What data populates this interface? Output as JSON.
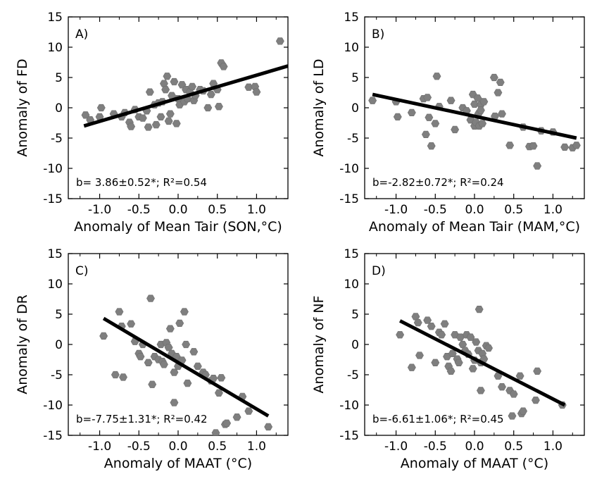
{
  "chart_data": [
    {
      "type": "scatter",
      "panel_label": "A)",
      "xlabel": "Anomaly of Mean Tair (SON,°C)",
      "ylabel": "Anomaly of FD",
      "xlim": [
        -1.4,
        1.4
      ],
      "ylim": [
        -15,
        15
      ],
      "xticks": [
        -1.0,
        -0.5,
        0.0,
        0.5,
        1.0
      ],
      "xtick_labels": [
        "-1.0",
        "-0.5",
        "0.0",
        "0.5",
        "1.0"
      ],
      "yticks": [
        -15,
        -10,
        -5,
        0,
        5,
        10,
        15
      ],
      "ytick_labels": [
        "-15",
        "-10",
        "-5",
        "0",
        "5",
        "10",
        "15"
      ],
      "annotation": "b= 3.86±0.52*; R²=0.54",
      "regression": {
        "x": [
          -1.2,
          1.4
        ],
        "y": [
          -3.0,
          6.9
        ]
      },
      "points": [
        [
          -1.18,
          -1.2
        ],
        [
          -1.12,
          -2.0
        ],
        [
          -1.0,
          -1.5
        ],
        [
          -0.98,
          0.0
        ],
        [
          -0.82,
          -1.0
        ],
        [
          -0.72,
          -1.5
        ],
        [
          -0.68,
          -0.8
        ],
        [
          -0.62,
          -2.4
        ],
        [
          -0.6,
          -3.1
        ],
        [
          -0.55,
          -0.3
        ],
        [
          -0.5,
          -1.5
        ],
        [
          -0.45,
          -1.7
        ],
        [
          -0.4,
          -0.5
        ],
        [
          -0.38,
          -3.2
        ],
        [
          -0.36,
          2.6
        ],
        [
          -0.3,
          0.5
        ],
        [
          -0.28,
          -2.8
        ],
        [
          -0.25,
          0.8
        ],
        [
          -0.22,
          -1.5
        ],
        [
          -0.2,
          1.0
        ],
        [
          -0.18,
          4.0
        ],
        [
          -0.16,
          3.0
        ],
        [
          -0.14,
          5.2
        ],
        [
          -0.12,
          -2.2
        ],
        [
          -0.1,
          -1.0
        ],
        [
          -0.08,
          2.0
        ],
        [
          -0.05,
          4.3
        ],
        [
          -0.02,
          -2.6
        ],
        [
          0.0,
          1.5
        ],
        [
          0.02,
          0.5
        ],
        [
          0.05,
          3.8
        ],
        [
          0.08,
          1.0
        ],
        [
          0.1,
          3.0
        ],
        [
          0.12,
          1.5
        ],
        [
          0.15,
          2.6
        ],
        [
          0.18,
          3.5
        ],
        [
          0.2,
          1.2
        ],
        [
          0.22,
          2.0
        ],
        [
          0.28,
          3.0
        ],
        [
          0.32,
          2.8
        ],
        [
          0.38,
          0.0
        ],
        [
          0.42,
          2.2
        ],
        [
          0.45,
          4.0
        ],
        [
          0.5,
          3.0
        ],
        [
          0.52,
          0.2
        ],
        [
          0.55,
          7.4
        ],
        [
          0.58,
          6.8
        ],
        [
          0.9,
          3.4
        ],
        [
          0.98,
          3.5
        ],
        [
          1.0,
          2.6
        ],
        [
          1.3,
          11.0
        ]
      ]
    },
    {
      "type": "scatter",
      "panel_label": "B)",
      "xlabel": "Anomaly of Mean Tair (MAM,°C)",
      "ylabel": "Anomaly of LD",
      "xlim": [
        -1.4,
        1.4
      ],
      "ylim": [
        -15,
        15
      ],
      "xticks": [
        -1.0,
        -0.5,
        0.0,
        0.5,
        1.0
      ],
      "xtick_labels": [
        "-1.0",
        "-0.5",
        "0.0",
        "0.5",
        "1.0"
      ],
      "yticks": [
        -15,
        -10,
        -5,
        0,
        5,
        10,
        15
      ],
      "ytick_labels": [
        "-15",
        "-10",
        "-5",
        "0",
        "5",
        "10",
        "15"
      ],
      "annotation": "b=-2.82±0.72*; R²=0.24",
      "regression": {
        "x": [
          -1.3,
          1.3
        ],
        "y": [
          2.2,
          -5.0
        ]
      },
      "points": [
        [
          -1.3,
          1.2
        ],
        [
          -1.0,
          1.0
        ],
        [
          -0.98,
          -1.5
        ],
        [
          -0.8,
          -0.8
        ],
        [
          -0.65,
          1.5
        ],
        [
          -0.62,
          -4.4
        ],
        [
          -0.6,
          1.7
        ],
        [
          -0.58,
          -1.6
        ],
        [
          -0.55,
          -6.3
        ],
        [
          -0.5,
          -2.6
        ],
        [
          -0.48,
          5.2
        ],
        [
          -0.45,
          0.2
        ],
        [
          -0.3,
          1.2
        ],
        [
          -0.25,
          -3.6
        ],
        [
          -0.15,
          0.0
        ],
        [
          -0.1,
          -0.5
        ],
        [
          -0.05,
          -2.0
        ],
        [
          -0.02,
          2.2
        ],
        [
          0.0,
          -3.0
        ],
        [
          0.0,
          0.6
        ],
        [
          0.02,
          -2.4
        ],
        [
          0.04,
          1.6
        ],
        [
          0.05,
          -1.0
        ],
        [
          0.06,
          -3.0
        ],
        [
          0.08,
          0.5
        ],
        [
          0.08,
          -0.4
        ],
        [
          0.1,
          -2.6
        ],
        [
          0.12,
          1.0
        ],
        [
          0.25,
          5.0
        ],
        [
          0.26,
          -1.4
        ],
        [
          0.3,
          2.5
        ],
        [
          0.33,
          4.2
        ],
        [
          0.35,
          -1.0
        ],
        [
          0.45,
          -6.2
        ],
        [
          0.62,
          -3.2
        ],
        [
          0.7,
          -6.4
        ],
        [
          0.75,
          -6.3
        ],
        [
          0.8,
          -9.6
        ],
        [
          0.85,
          -3.8
        ],
        [
          1.0,
          -4.0
        ],
        [
          1.15,
          -6.5
        ],
        [
          1.25,
          -6.6
        ],
        [
          1.3,
          -6.2
        ]
      ]
    },
    {
      "type": "scatter",
      "panel_label": "C)",
      "xlabel": "Anomaly of MAAT (°C)",
      "ylabel": "Anomaly of DR",
      "xlim": [
        -1.4,
        1.4
      ],
      "ylim": [
        -15,
        15
      ],
      "xticks": [
        -1.0,
        -0.5,
        0.0,
        0.5,
        1.0
      ],
      "xtick_labels": [
        "-1.0",
        "-0.5",
        "0.0",
        "0.5",
        "1.0"
      ],
      "yticks": [
        -15,
        -10,
        -5,
        0,
        5,
        10,
        15
      ],
      "ytick_labels": [
        "-15",
        "-10",
        "-5",
        "0",
        "5",
        "10",
        "15"
      ],
      "annotation": "b=-7.75±1.31*; R²=0.42",
      "regression": {
        "x": [
          -0.95,
          1.15
        ],
        "y": [
          4.3,
          -11.8
        ]
      },
      "points": [
        [
          -0.95,
          1.4
        ],
        [
          -0.8,
          -5.0
        ],
        [
          -0.75,
          5.4
        ],
        [
          -0.72,
          3.0
        ],
        [
          -0.7,
          -5.4
        ],
        [
          -0.6,
          3.4
        ],
        [
          -0.55,
          0.5
        ],
        [
          -0.5,
          -1.5
        ],
        [
          -0.48,
          -2.0
        ],
        [
          -0.45,
          0.0
        ],
        [
          -0.38,
          -3.0
        ],
        [
          -0.35,
          7.6
        ],
        [
          -0.33,
          -6.6
        ],
        [
          -0.3,
          -2.0
        ],
        [
          -0.25,
          -2.5
        ],
        [
          -0.22,
          0.0
        ],
        [
          -0.2,
          -2.8
        ],
        [
          -0.18,
          -3.3
        ],
        [
          -0.15,
          0.3
        ],
        [
          -0.12,
          -0.5
        ],
        [
          -0.1,
          2.6
        ],
        [
          -0.08,
          -1.5
        ],
        [
          -0.05,
          -4.6
        ],
        [
          -0.05,
          -9.6
        ],
        [
          -0.02,
          -2.0
        ],
        [
          0.0,
          -3.6
        ],
        [
          0.02,
          3.5
        ],
        [
          0.05,
          -2.6
        ],
        [
          0.08,
          5.4
        ],
        [
          0.1,
          0.0
        ],
        [
          0.12,
          -6.4
        ],
        [
          0.2,
          -1.2
        ],
        [
          0.25,
          -3.6
        ],
        [
          0.32,
          -4.6
        ],
        [
          0.35,
          -5.0
        ],
        [
          0.42,
          -6.0
        ],
        [
          0.45,
          -5.6
        ],
        [
          0.48,
          -14.6
        ],
        [
          0.52,
          -8.0
        ],
        [
          0.55,
          -5.5
        ],
        [
          0.6,
          -13.2
        ],
        [
          0.62,
          -13.0
        ],
        [
          0.75,
          -12.0
        ],
        [
          0.82,
          -8.6
        ],
        [
          0.9,
          -11.0
        ],
        [
          1.15,
          -13.6
        ]
      ]
    },
    {
      "type": "scatter",
      "panel_label": "D)",
      "xlabel": "Anomaly of MAAT (°C)",
      "ylabel": "Anomaly of NF",
      "xlim": [
        -1.4,
        1.4
      ],
      "ylim": [
        -15,
        15
      ],
      "xticks": [
        -1.0,
        -0.5,
        0.0,
        0.5,
        1.0
      ],
      "xtick_labels": [
        "-1.0",
        "-0.5",
        "0.0",
        "0.5",
        "1.0"
      ],
      "yticks": [
        -15,
        -10,
        -5,
        0,
        5,
        10,
        15
      ],
      "ytick_labels": [
        "-15",
        "-10",
        "-5",
        "0",
        "5",
        "10",
        "15"
      ],
      "annotation": "b=-6.61±1.06*; R²=0.45",
      "regression": {
        "x": [
          -0.95,
          1.15
        ],
        "y": [
          3.9,
          -10.0
        ]
      },
      "points": [
        [
          -0.95,
          1.6
        ],
        [
          -0.8,
          -3.8
        ],
        [
          -0.75,
          4.6
        ],
        [
          -0.72,
          3.6
        ],
        [
          -0.7,
          -1.8
        ],
        [
          -0.6,
          4.0
        ],
        [
          -0.55,
          3.0
        ],
        [
          -0.5,
          -3.0
        ],
        [
          -0.45,
          2.0
        ],
        [
          -0.42,
          1.6
        ],
        [
          -0.38,
          3.4
        ],
        [
          -0.35,
          -2.0
        ],
        [
          -0.33,
          -3.6
        ],
        [
          -0.3,
          -4.4
        ],
        [
          -0.28,
          -1.5
        ],
        [
          -0.25,
          1.6
        ],
        [
          -0.22,
          -2.4
        ],
        [
          -0.2,
          -3.0
        ],
        [
          -0.18,
          1.2
        ],
        [
          -0.15,
          0.0
        ],
        [
          -0.12,
          -1.0
        ],
        [
          -0.1,
          1.6
        ],
        [
          -0.08,
          -1.6
        ],
        [
          -0.05,
          1.2
        ],
        [
          -0.02,
          -4.0
        ],
        [
          0.0,
          -2.6
        ],
        [
          0.02,
          0.4
        ],
        [
          0.05,
          -1.0
        ],
        [
          0.06,
          5.8
        ],
        [
          0.08,
          -3.0
        ],
        [
          0.08,
          -7.6
        ],
        [
          0.1,
          -1.5
        ],
        [
          0.12,
          -2.4
        ],
        [
          0.15,
          -0.2
        ],
        [
          0.18,
          -0.6
        ],
        [
          0.3,
          -5.2
        ],
        [
          0.35,
          -7.0
        ],
        [
          0.45,
          -7.6
        ],
        [
          0.48,
          -11.8
        ],
        [
          0.5,
          -8.2
        ],
        [
          0.58,
          -5.2
        ],
        [
          0.6,
          -11.4
        ],
        [
          0.62,
          -11.0
        ],
        [
          0.78,
          -9.2
        ],
        [
          0.8,
          -4.4
        ],
        [
          1.12,
          -10.0
        ]
      ]
    }
  ]
}
